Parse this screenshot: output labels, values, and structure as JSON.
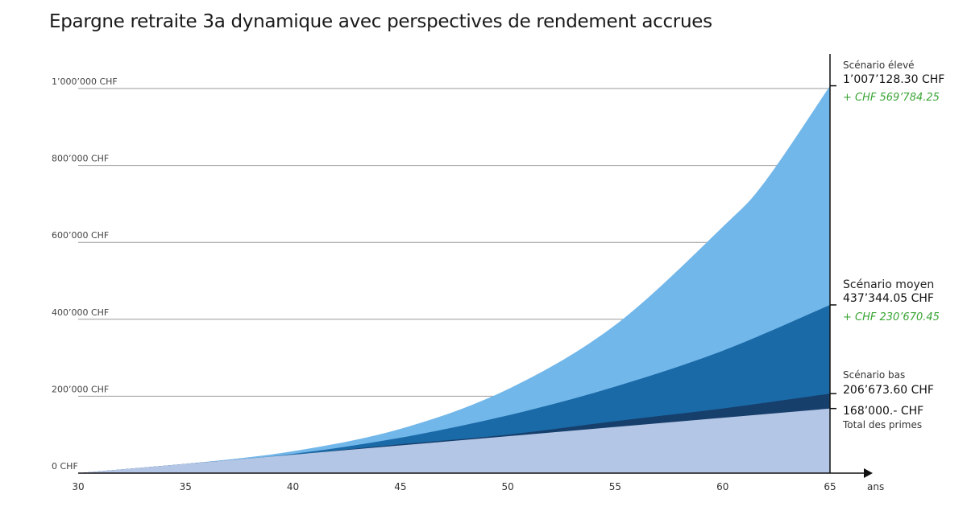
{
  "chart_data": {
    "type": "area",
    "title": "Epargne retraite 3a dynamique avec perspectives de rendement accrues",
    "x_unit": "ans",
    "x_ticks": [
      30,
      35,
      40,
      45,
      50,
      55,
      60,
      65
    ],
    "y_ticks": [
      {
        "value": 0,
        "label": "0 CHF"
      },
      {
        "value": 200000,
        "label": "200’000 CHF"
      },
      {
        "value": 400000,
        "label": "400’000 CHF"
      },
      {
        "value": 600000,
        "label": "600’000 CHF"
      },
      {
        "value": 800000,
        "label": "800’000 CHF"
      },
      {
        "value": 1000000,
        "label": "1’000’000 CHF"
      }
    ],
    "xlim": [
      30,
      65
    ],
    "ylim": [
      0,
      1000000
    ],
    "grid": true,
    "series": [
      {
        "name": "Scénario élevé",
        "color": "#72b7ea",
        "x": [
          30,
          35,
          40,
          45,
          50,
          55,
          60,
          62,
          65
        ],
        "values": [
          0,
          24000,
          57000,
          115000,
          218000,
          385000,
          640000,
          760000,
          1007128.3
        ]
      },
      {
        "name": "Scénario moyen",
        "color": "#1a6aa8",
        "x": [
          30,
          35,
          40,
          45,
          50,
          55,
          60,
          65
        ],
        "values": [
          0,
          24000,
          50000,
          92000,
          150000,
          225000,
          318000,
          437344.05
        ]
      },
      {
        "name": "Scénario bas",
        "color": "#173f6b",
        "x": [
          30,
          35,
          40,
          45,
          50,
          55,
          60,
          65
        ],
        "values": [
          0,
          24000,
          48000,
          75000,
          100000,
          135000,
          168000,
          206673.6
        ]
      },
      {
        "name": "Total des primes",
        "color": "#b4c6e6",
        "x": [
          30,
          65
        ],
        "values": [
          0,
          168000
        ]
      }
    ],
    "annotations": {
      "high": {
        "label": "Scénario élevé",
        "value": "1’007’128.30 CHF",
        "gain": "+ CHF 569’784.25"
      },
      "mid": {
        "label": "Scénario moyen",
        "value": "437’344.05 CHF",
        "gain": "+ CHF 230’670.45"
      },
      "low": {
        "label": "Scénario bas",
        "value": "206’673.60 CHF"
      },
      "premiums": {
        "value": "168’000.- CHF",
        "label": "Total des primes"
      }
    }
  }
}
